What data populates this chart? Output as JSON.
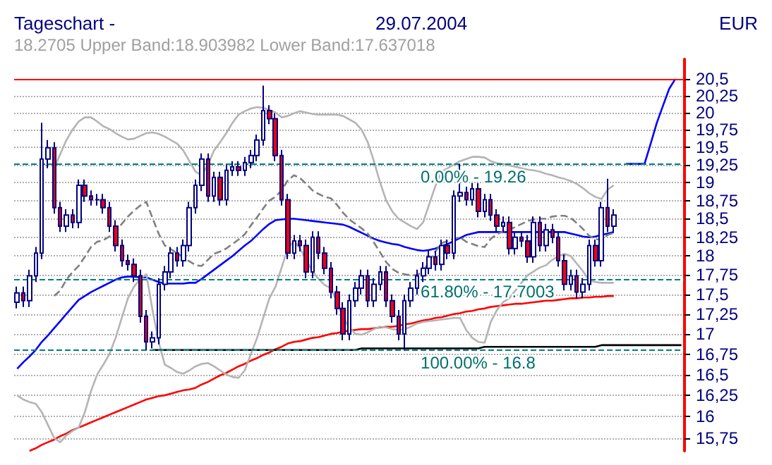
{
  "chart_data": {
    "type": "candlestick",
    "title": "Tageschart -",
    "subtitle": "29.07.2004",
    "ylabel": "EUR",
    "annotations": [
      "18.2705 Upper Band:18.903982 Lower Band:17.637018",
      {
        "text": "0.00% - 19.26",
        "y": 19.26
      },
      {
        "text": "61.80% - 17.7003",
        "y": 17.7003
      },
      {
        "text": "100.00% - 16.8",
        "y": 16.8
      }
    ],
    "categories": [
      null,
      null,
      null,
      null,
      null,
      null,
      null,
      null,
      null,
      null,
      null,
      null,
      null,
      null,
      null,
      null,
      null,
      null,
      null,
      null,
      null,
      null,
      null,
      null,
      null,
      null,
      null,
      null,
      null,
      null,
      null,
      null,
      null,
      null,
      null,
      null,
      null,
      null,
      null,
      null,
      null,
      null,
      null,
      null,
      null,
      null,
      null,
      null,
      null,
      null,
      null,
      null,
      null,
      null,
      null,
      null,
      null,
      null,
      null,
      null,
      null,
      null,
      null,
      null,
      null,
      null,
      null,
      null,
      null,
      null,
      null,
      null,
      null,
      null,
      null,
      null,
      null,
      null,
      null,
      null,
      null,
      null,
      null,
      null,
      null,
      null,
      null,
      null,
      null,
      null,
      null,
      null,
      null,
      null,
      null,
      null,
      null,
      null,
      null,
      null,
      null,
      null,
      null,
      null,
      null,
      null,
      null,
      null,
      null
    ],
    "ohlc": [
      [
        17.4,
        17.6,
        17.32,
        17.52
      ],
      [
        17.52,
        17.6,
        17.34,
        17.42
      ],
      [
        17.42,
        17.82,
        17.34,
        17.74
      ],
      [
        17.74,
        18.12,
        17.66,
        18.04
      ],
      [
        18.04,
        19.85,
        17.96,
        19.33
      ],
      [
        19.33,
        19.6,
        19.2,
        19.49
      ],
      [
        19.49,
        19.57,
        18.57,
        18.65
      ],
      [
        18.65,
        18.73,
        18.32,
        18.4
      ],
      [
        18.4,
        18.63,
        18.32,
        18.55
      ],
      [
        18.55,
        18.63,
        18.37,
        18.45
      ],
      [
        18.45,
        19.04,
        18.37,
        18.96
      ],
      [
        18.96,
        19.04,
        18.73,
        18.81
      ],
      [
        18.81,
        18.89,
        18.68,
        18.76
      ],
      [
        18.76,
        18.84,
        18.68,
        18.76
      ],
      [
        18.76,
        18.84,
        18.57,
        18.65
      ],
      [
        18.65,
        18.73,
        18.32,
        18.4
      ],
      [
        18.4,
        18.48,
        18.06,
        18.14
      ],
      [
        18.14,
        18.22,
        17.86,
        17.94
      ],
      [
        17.94,
        18.02,
        17.81,
        17.89
      ],
      [
        17.89,
        17.97,
        17.66,
        17.74
      ],
      [
        17.74,
        17.82,
        17.14,
        17.22
      ],
      [
        17.22,
        17.3,
        16.8,
        16.9
      ],
      [
        16.9,
        17.03,
        16.82,
        16.95
      ],
      [
        16.95,
        17.71,
        16.87,
        17.63
      ],
      [
        17.63,
        17.87,
        17.55,
        17.79
      ],
      [
        17.79,
        18.12,
        17.71,
        18.04
      ],
      [
        18.04,
        18.12,
        17.86,
        17.94
      ],
      [
        17.94,
        18.22,
        17.86,
        18.14
      ],
      [
        18.14,
        18.73,
        18.06,
        18.65
      ],
      [
        18.65,
        19.04,
        18.57,
        18.96
      ],
      [
        18.96,
        19.41,
        18.88,
        19.33
      ],
      [
        19.33,
        19.41,
        18.73,
        18.81
      ],
      [
        18.81,
        19.15,
        18.73,
        19.07
      ],
      [
        19.07,
        19.15,
        18.68,
        18.76
      ],
      [
        18.76,
        19.25,
        18.68,
        19.17
      ],
      [
        19.17,
        19.3,
        19.09,
        19.22
      ],
      [
        19.22,
        19.3,
        19.09,
        19.17
      ],
      [
        19.17,
        19.36,
        19.09,
        19.28
      ],
      [
        19.28,
        19.46,
        19.2,
        19.38
      ],
      [
        19.38,
        19.68,
        19.3,
        19.6
      ],
      [
        19.6,
        20.4,
        19.52,
        20.03
      ],
      [
        20.03,
        20.11,
        19.83,
        19.91
      ],
      [
        19.91,
        19.99,
        19.3,
        19.38
      ],
      [
        19.38,
        19.46,
        18.68,
        18.76
      ],
      [
        18.76,
        18.84,
        17.96,
        18.04
      ],
      [
        18.04,
        18.28,
        17.96,
        18.2
      ],
      [
        18.2,
        18.28,
        18.06,
        18.14
      ],
      [
        18.14,
        18.22,
        17.71,
        17.79
      ],
      [
        17.79,
        18.33,
        17.71,
        18.25
      ],
      [
        18.25,
        18.33,
        17.96,
        18.04
      ],
      [
        18.04,
        18.12,
        17.76,
        17.84
      ],
      [
        17.84,
        17.92,
        17.45,
        17.53
      ],
      [
        17.53,
        17.61,
        17.24,
        17.32
      ],
      [
        17.32,
        17.4,
        16.92,
        17.0
      ],
      [
        17.0,
        17.5,
        16.92,
        17.42
      ],
      [
        17.42,
        17.66,
        17.34,
        17.58
      ],
      [
        17.58,
        17.82,
        17.5,
        17.74
      ],
      [
        17.74,
        17.82,
        17.34,
        17.42
      ],
      [
        17.42,
        17.71,
        17.34,
        17.63
      ],
      [
        17.63,
        17.87,
        17.55,
        17.79
      ],
      [
        17.79,
        17.87,
        17.34,
        17.42
      ],
      [
        17.42,
        17.5,
        17.14,
        17.22
      ],
      [
        17.22,
        17.3,
        16.92,
        17.0
      ],
      [
        17.0,
        17.5,
        16.8,
        17.42
      ],
      [
        17.42,
        17.66,
        17.34,
        17.58
      ],
      [
        17.58,
        17.82,
        17.5,
        17.74
      ],
      [
        17.74,
        17.92,
        17.66,
        17.84
      ],
      [
        17.84,
        18.07,
        17.76,
        17.99
      ],
      [
        17.99,
        18.07,
        17.81,
        17.89
      ],
      [
        17.89,
        18.22,
        17.81,
        18.14
      ],
      [
        18.14,
        18.22,
        17.96,
        18.04
      ],
      [
        18.04,
        18.89,
        17.96,
        18.81
      ],
      [
        18.81,
        19.26,
        18.73,
        18.86
      ],
      [
        18.86,
        18.94,
        18.68,
        18.76
      ],
      [
        18.76,
        18.99,
        18.68,
        18.91
      ],
      [
        18.91,
        18.99,
        18.52,
        18.6
      ],
      [
        18.6,
        18.84,
        18.52,
        18.76
      ],
      [
        18.76,
        18.84,
        18.47,
        18.55
      ],
      [
        18.55,
        18.63,
        18.32,
        18.4
      ],
      [
        18.4,
        18.53,
        18.32,
        18.45
      ],
      [
        18.45,
        18.53,
        18.02,
        18.1
      ],
      [
        18.1,
        18.33,
        18.02,
        18.25
      ],
      [
        18.25,
        18.33,
        18.12,
        18.2
      ],
      [
        18.2,
        18.28,
        17.91,
        17.99
      ],
      [
        17.99,
        18.53,
        17.91,
        18.45
      ],
      [
        18.45,
        18.53,
        18.06,
        18.14
      ],
      [
        18.14,
        18.43,
        18.06,
        18.35
      ],
      [
        18.35,
        18.43,
        18.17,
        18.25
      ],
      [
        18.25,
        18.33,
        17.86,
        17.94
      ],
      [
        17.94,
        18.02,
        17.55,
        17.63
      ],
      [
        17.63,
        17.82,
        17.55,
        17.74
      ],
      [
        17.74,
        17.82,
        17.45,
        17.53
      ],
      [
        17.53,
        17.71,
        17.45,
        17.63
      ],
      [
        17.63,
        18.22,
        17.55,
        18.14
      ],
      [
        18.14,
        18.22,
        17.86,
        17.94
      ],
      [
        17.94,
        18.73,
        17.86,
        18.65
      ],
      [
        18.65,
        19.05,
        18.32,
        18.4
      ],
      [
        18.4,
        18.63,
        18.32,
        18.55
      ],
      null,
      null,
      null,
      null,
      null,
      null,
      null,
      null,
      null,
      null,
      null
    ],
    "series": [
      {
        "type": "line",
        "color": "#0000ff",
        "values": [
          16.57,
          16.65,
          16.72,
          16.8,
          16.9,
          16.98,
          17.07,
          17.16,
          17.25,
          17.34,
          17.43,
          17.48,
          17.53,
          17.57,
          17.61,
          17.65,
          17.69,
          17.72,
          17.73,
          17.73,
          17.72,
          17.72,
          17.69,
          17.66,
          17.64,
          17.64,
          17.64,
          17.64,
          17.65,
          17.65,
          17.7,
          17.76,
          17.82,
          17.88,
          17.94,
          18.0,
          18.07,
          18.14,
          18.2,
          18.28,
          18.36,
          18.43,
          18.48,
          18.49,
          18.5,
          18.5,
          18.49,
          18.48,
          18.47,
          18.46,
          18.45,
          18.44,
          18.43,
          18.42,
          18.39,
          18.35,
          18.31,
          18.27,
          18.23,
          18.2,
          18.18,
          18.16,
          18.15,
          18.12,
          18.1,
          18.08,
          18.07,
          18.08,
          18.1,
          18.13,
          18.16,
          18.2,
          18.24,
          18.28,
          18.3,
          18.32,
          18.32,
          18.32,
          18.32,
          18.32,
          18.32,
          18.32,
          18.32,
          18.32,
          18.32,
          18.32,
          18.32,
          18.32,
          18.32,
          18.32,
          18.3,
          18.28,
          18.26,
          18.25,
          18.26,
          18.28,
          18.3,
          18.32,
          null,
          null,
          null,
          null,
          null,
          null,
          null,
          null,
          null,
          null,
          null
        ]
      },
      {
        "type": "line",
        "color": "#ff0000",
        "values": [
          null,
          null,
          15.6,
          15.63,
          15.67,
          15.7,
          15.73,
          15.77,
          15.8,
          15.84,
          15.87,
          15.9,
          15.93,
          15.96,
          15.99,
          16.02,
          16.05,
          16.08,
          16.11,
          16.14,
          16.17,
          16.2,
          16.22,
          16.24,
          16.25,
          16.27,
          16.29,
          16.31,
          16.32,
          16.34,
          16.38,
          16.41,
          16.45,
          16.49,
          16.52,
          16.56,
          16.6,
          16.63,
          16.67,
          16.7,
          16.74,
          16.77,
          16.81,
          16.84,
          16.88,
          16.9,
          16.91,
          16.93,
          16.95,
          16.96,
          16.98,
          17.0,
          17.01,
          17.03,
          17.04,
          17.05,
          17.06,
          17.06,
          17.07,
          17.08,
          17.09,
          17.09,
          17.1,
          17.12,
          17.13,
          17.15,
          17.17,
          17.18,
          17.2,
          17.21,
          17.23,
          17.25,
          17.26,
          17.28,
          17.29,
          17.31,
          17.32,
          17.34,
          17.35,
          17.36,
          17.37,
          17.38,
          17.38,
          17.39,
          17.4,
          17.41,
          17.42,
          17.42,
          17.43,
          17.44,
          17.45,
          17.45,
          17.46,
          17.46,
          17.47,
          17.47,
          17.48,
          17.48,
          null,
          null,
          null,
          null,
          null,
          null,
          null,
          null,
          null,
          null,
          null
        ]
      },
      {
        "type": "line",
        "color": "#b4b4b4",
        "values": [
          null,
          null,
          null,
          null,
          null,
          null,
          19.2,
          19.4,
          19.6,
          19.75,
          19.87,
          19.93,
          19.93,
          19.87,
          19.8,
          19.76,
          19.7,
          19.65,
          19.61,
          19.62,
          19.66,
          19.7,
          19.71,
          19.69,
          19.65,
          19.6,
          19.55,
          19.45,
          19.3,
          19.15,
          19.1,
          19.25,
          19.45,
          19.57,
          19.7,
          19.85,
          19.97,
          20.02,
          20.06,
          20.08,
          20.07,
          20.04,
          20.0,
          19.93,
          19.95,
          19.99,
          20.02,
          20.0,
          19.98,
          19.97,
          19.97,
          19.97,
          19.97,
          19.95,
          19.9,
          19.85,
          19.75,
          19.57,
          19.3,
          19.0,
          18.75,
          18.6,
          18.5,
          18.45,
          18.4,
          18.36,
          18.45,
          18.7,
          18.95,
          19.15,
          19.2,
          19.25,
          19.3,
          19.33,
          19.36,
          19.36,
          19.35,
          19.3,
          19.27,
          19.26,
          19.24,
          19.22,
          19.2,
          19.18,
          19.17,
          19.15,
          19.12,
          19.1,
          19.07,
          19.05,
          19.02,
          18.98,
          18.92,
          18.85,
          18.8,
          18.77,
          18.9,
          18.96,
          null,
          null,
          null,
          null,
          null,
          null,
          null,
          null,
          null,
          null,
          null
        ]
      },
      {
        "type": "line",
        "color": "#b4b4b4",
        "values": [
          16.25,
          16.2,
          16.17,
          16.15,
          16.05,
          15.9,
          15.75,
          15.7,
          15.78,
          15.83,
          15.87,
          16.05,
          16.3,
          16.5,
          16.62,
          16.75,
          16.95,
          17.2,
          17.45,
          17.6,
          17.7,
          17.76,
          17.3,
          16.9,
          16.62,
          16.58,
          16.53,
          16.51,
          16.55,
          16.6,
          16.63,
          16.64,
          16.6,
          16.55,
          16.5,
          16.47,
          16.46,
          16.55,
          16.75,
          16.95,
          17.2,
          17.45,
          17.6,
          17.85,
          18.1,
          18.2,
          18.1,
          17.95,
          17.8,
          17.7,
          17.62,
          17.58,
          17.4,
          17.2,
          17.08,
          17.0,
          16.99,
          17.02,
          17.06,
          17.09,
          17.08,
          17.06,
          17.05,
          17.06,
          17.09,
          17.13,
          17.15,
          17.16,
          17.17,
          17.18,
          17.19,
          17.2,
          17.2,
          17.05,
          16.95,
          16.9,
          16.89,
          17.15,
          17.3,
          17.4,
          17.45,
          17.55,
          17.65,
          17.75,
          17.8,
          17.85,
          17.88,
          17.95,
          18.0,
          18.03,
          18.0,
          17.9,
          17.8,
          17.68,
          17.66,
          17.65,
          17.65,
          17.65,
          null,
          null,
          null,
          null,
          null,
          null,
          null,
          null,
          null,
          null,
          null
        ]
      },
      {
        "type": "line",
        "color": "#808080",
        "line_style": "dashed",
        "values": [
          null,
          null,
          null,
          null,
          null,
          null,
          17.48,
          17.55,
          17.69,
          17.79,
          17.87,
          17.99,
          18.12,
          18.19,
          18.21,
          18.26,
          18.33,
          18.43,
          18.53,
          18.61,
          18.68,
          18.73,
          18.51,
          18.3,
          18.14,
          18.09,
          18.04,
          17.98,
          17.93,
          17.88,
          17.87,
          17.95,
          18.03,
          18.06,
          18.1,
          18.16,
          18.22,
          18.29,
          18.41,
          18.52,
          18.64,
          18.75,
          18.8,
          18.89,
          19.03,
          19.1,
          19.06,
          18.98,
          18.89,
          18.84,
          18.8,
          18.78,
          18.69,
          18.58,
          18.49,
          18.43,
          18.37,
          18.3,
          18.18,
          18.05,
          17.92,
          17.83,
          17.78,
          17.76,
          17.75,
          17.75,
          17.8,
          17.93,
          18.06,
          18.17,
          18.2,
          18.23,
          18.25,
          18.19,
          18.16,
          18.13,
          18.12,
          18.23,
          18.29,
          18.33,
          18.35,
          18.39,
          18.43,
          18.47,
          18.49,
          18.5,
          18.5,
          18.53,
          18.54,
          18.54,
          18.51,
          18.44,
          18.36,
          18.27,
          18.23,
          18.21,
          18.28,
          18.31,
          null,
          null,
          null,
          null,
          null,
          null,
          null,
          null,
          null,
          null,
          null
        ]
      },
      {
        "type": "line",
        "color": "#000000",
        "values": [
          null,
          null,
          null,
          null,
          null,
          null,
          null,
          null,
          null,
          null,
          null,
          null,
          null,
          null,
          null,
          null,
          null,
          null,
          null,
          null,
          null,
          null,
          16.8,
          16.8,
          16.8,
          16.8,
          16.8,
          16.8,
          16.8,
          16.8,
          16.8,
          16.8,
          16.8,
          16.8,
          16.8,
          16.8,
          16.8,
          16.8,
          16.8,
          16.8,
          16.8,
          16.8,
          16.8,
          16.8,
          16.8,
          16.8,
          16.8,
          16.8,
          16.8,
          16.8,
          16.8,
          16.8,
          16.8,
          16.8,
          16.8,
          16.8,
          16.82,
          16.82,
          16.82,
          16.82,
          16.82,
          16.82,
          16.82,
          16.82,
          16.82,
          16.82,
          16.82,
          16.82,
          16.82,
          16.82,
          16.82,
          16.82,
          16.82,
          16.82,
          16.82,
          16.82,
          16.84,
          16.84,
          16.84,
          16.84,
          16.84,
          16.84,
          16.84,
          16.84,
          16.84,
          16.84,
          16.84,
          16.84,
          16.84,
          16.84,
          16.84,
          16.84,
          16.84,
          16.84,
          16.84,
          16.86,
          16.86,
          16.86,
          16.86,
          16.86,
          16.86,
          16.86,
          16.86,
          16.86,
          16.86,
          16.86,
          16.86,
          16.86,
          16.86
        ]
      },
      {
        "type": "line",
        "color": "#0000ff",
        "values": [
          null,
          null,
          null,
          null,
          null,
          null,
          null,
          null,
          null,
          null,
          null,
          null,
          null,
          null,
          null,
          null,
          null,
          null,
          null,
          null,
          null,
          null,
          null,
          null,
          null,
          null,
          null,
          null,
          null,
          null,
          null,
          null,
          null,
          null,
          null,
          null,
          null,
          null,
          null,
          null,
          null,
          null,
          null,
          null,
          null,
          null,
          null,
          null,
          null,
          null,
          null,
          null,
          null,
          null,
          null,
          null,
          null,
          null,
          null,
          null,
          null,
          null,
          null,
          null,
          null,
          null,
          null,
          null,
          null,
          null,
          null,
          null,
          null,
          null,
          null,
          null,
          null,
          null,
          null,
          null,
          null,
          null,
          null,
          null,
          null,
          null,
          null,
          null,
          null,
          null,
          null,
          null,
          null,
          null,
          null,
          null,
          null,
          null,
          null,
          19.26,
          19.26,
          19.26,
          19.26,
          19.55,
          19.85,
          20.1,
          20.35,
          20.5,
          null
        ]
      }
    ],
    "ref_lines": [
      {
        "axis": "y",
        "value": 20.5,
        "color": "#ff0000",
        "line_style": "solid"
      },
      {
        "axis": "y",
        "value": 19.26,
        "color": "#008080",
        "line_style": "dashed"
      },
      {
        "axis": "y",
        "value": 17.7003,
        "color": "#008080",
        "line_style": "dashed"
      },
      {
        "axis": "y",
        "value": 16.8,
        "color": "#008080",
        "line_style": "dashed"
      }
    ],
    "log": "y",
    "ylim": [
      15.6,
      20.8
    ],
    "yticks": [
      {
        "value": 15.75,
        "label": "15,75"
      },
      16,
      {
        "value": 16.25,
        "label": "16,25"
      },
      {
        "value": 16.5,
        "label": "16,5"
      },
      {
        "value": 16.75,
        "label": "16,75"
      },
      17,
      {
        "value": 17.25,
        "label": "17,25"
      },
      {
        "value": 17.5,
        "label": "17,5"
      },
      {
        "value": 17.75,
        "label": "17,75"
      },
      18,
      {
        "value": 18.25,
        "label": "18,25"
      },
      {
        "value": 18.5,
        "label": "18,5"
      },
      {
        "value": 18.75,
        "label": "18,75"
      },
      19,
      {
        "value": 19.25,
        "label": "19,25"
      },
      {
        "value": 19.5,
        "label": "19,5"
      },
      {
        "value": 19.75,
        "label": "19,75"
      },
      20,
      {
        "value": 20.25,
        "label": "20,25"
      },
      {
        "value": 20.5,
        "label": "20,5"
      }
    ],
    "grid": "y",
    "tick_labels": "y"
  }
}
